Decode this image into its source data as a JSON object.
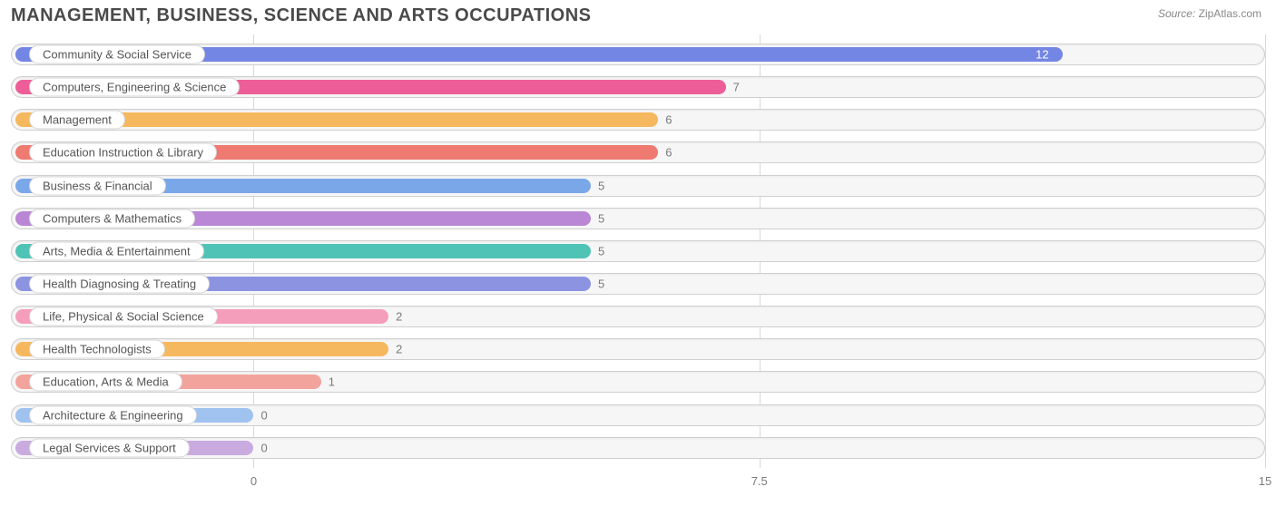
{
  "title": "MANAGEMENT, BUSINESS, SCIENCE AND ARTS OCCUPATIONS",
  "source": {
    "label": "Source:",
    "name": "ZipAtlas.com"
  },
  "chart": {
    "type": "bar-horizontal",
    "background_color": "#ffffff",
    "track_bg": "#f6f6f6",
    "track_border": "#cfcfcf",
    "grid_color": "#d9d9d9",
    "text_color": "#555555",
    "value_color": "#7a7a7a",
    "title_color": "#4a4a4a",
    "title_fontsize": 20,
    "label_fontsize": 13,
    "value_fontsize": 13,
    "xlim": [
      0,
      15
    ],
    "xticks": [
      0,
      7.5,
      15
    ],
    "xtick_labels": [
      "0",
      "7.5",
      "15"
    ],
    "bar_origin_value": -3.6,
    "bars": [
      {
        "label": "Community & Social Service",
        "value": 12,
        "color": "#7386e4",
        "value_inside": true
      },
      {
        "label": "Computers, Engineering & Science",
        "value": 7,
        "color": "#ed5e99",
        "value_inside": false
      },
      {
        "label": "Management",
        "value": 6,
        "color": "#f6b85e",
        "value_inside": false
      },
      {
        "label": "Education Instruction & Library",
        "value": 6,
        "color": "#ee7a72",
        "value_inside": false
      },
      {
        "label": "Business & Financial",
        "value": 5,
        "color": "#7aa7e8",
        "value_inside": false
      },
      {
        "label": "Computers & Mathematics",
        "value": 5,
        "color": "#ba87d6",
        "value_inside": false
      },
      {
        "label": "Arts, Media & Entertainment",
        "value": 5,
        "color": "#4fc3b6",
        "value_inside": false
      },
      {
        "label": "Health Diagnosing & Treating",
        "value": 5,
        "color": "#8c94e2",
        "value_inside": false
      },
      {
        "label": "Life, Physical & Social Science",
        "value": 2,
        "color": "#f59ebc",
        "value_inside": false
      },
      {
        "label": "Health Technologists",
        "value": 2,
        "color": "#f6b85e",
        "value_inside": false
      },
      {
        "label": "Education, Arts & Media",
        "value": 1,
        "color": "#f2a39c",
        "value_inside": false
      },
      {
        "label": "Architecture & Engineering",
        "value": 0,
        "color": "#9fc2ef",
        "value_inside": false
      },
      {
        "label": "Legal Services & Support",
        "value": 0,
        "color": "#c9abe0",
        "value_inside": false
      }
    ]
  }
}
